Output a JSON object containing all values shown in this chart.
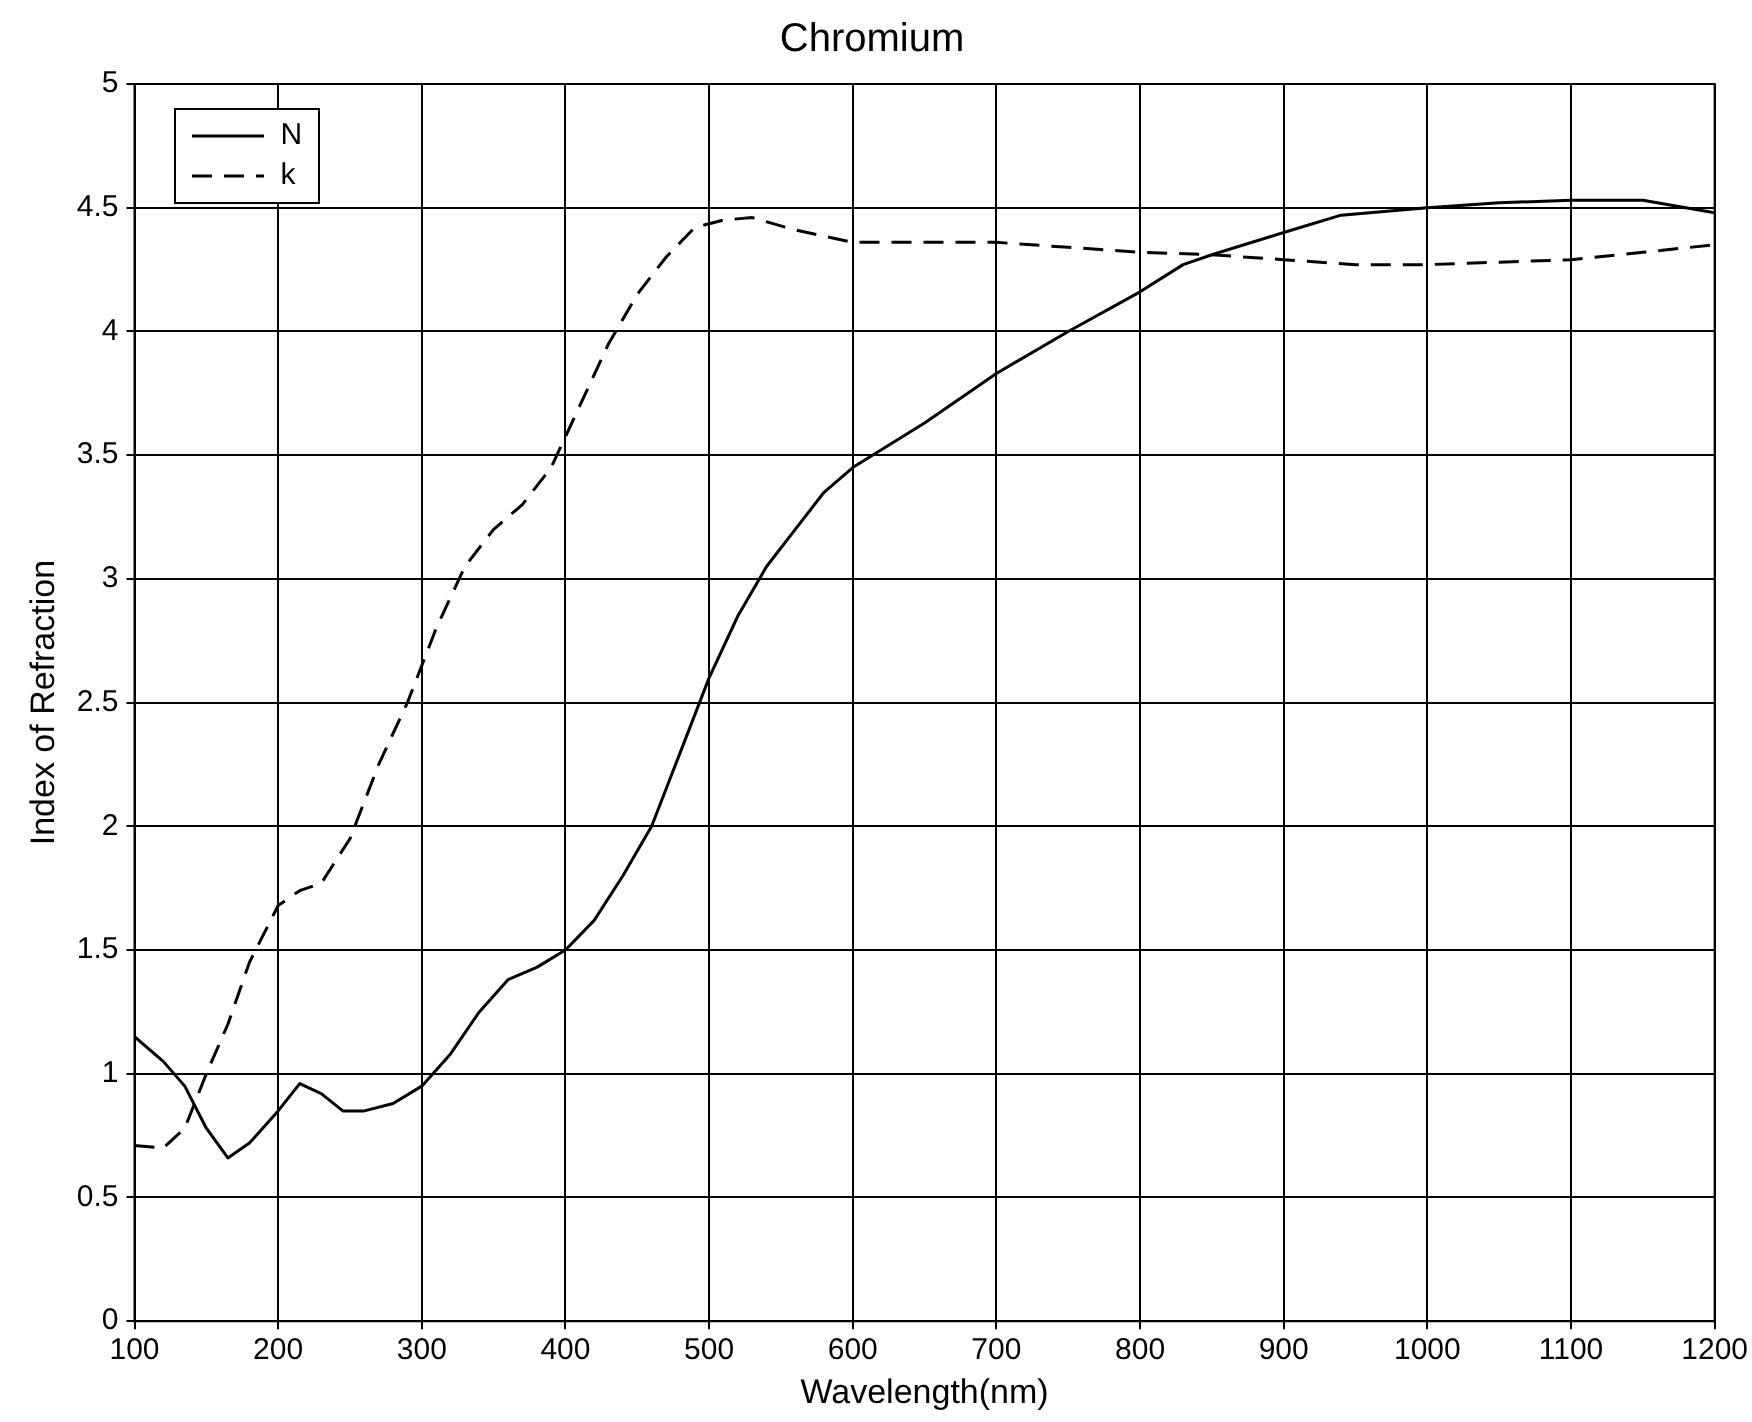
{
  "chart_data": {
    "type": "line",
    "title": "Chromium",
    "xlabel": "Wavelength(nm)",
    "ylabel": "Index of Refraction",
    "xlim": [
      100,
      1200
    ],
    "xticks": [
      100,
      200,
      300,
      400,
      500,
      600,
      700,
      800,
      900,
      1000,
      1100,
      1200
    ],
    "ylim": [
      0,
      5
    ],
    "yticks": [
      0,
      0.5,
      1,
      1.5,
      2,
      2.5,
      3,
      3.5,
      4,
      4.5,
      5
    ],
    "grid": true,
    "legend": "top left",
    "marker": "none",
    "series": [
      {
        "name": "N",
        "color": "#000000",
        "line_style": "solid",
        "x": [
          100,
          120,
          135,
          150,
          165,
          180,
          200,
          215,
          230,
          245,
          260,
          280,
          300,
          320,
          340,
          360,
          380,
          400,
          420,
          440,
          460,
          480,
          500,
          520,
          540,
          560,
          580,
          600,
          650,
          700,
          750,
          800,
          830,
          850,
          900,
          940,
          1000,
          1050,
          1100,
          1150,
          1200
        ],
        "values": [
          1.15,
          1.05,
          0.95,
          0.78,
          0.66,
          0.72,
          0.85,
          0.96,
          0.92,
          0.85,
          0.85,
          0.88,
          0.95,
          1.08,
          1.25,
          1.38,
          1.43,
          1.5,
          1.62,
          1.8,
          2.0,
          2.3,
          2.6,
          2.85,
          3.05,
          3.2,
          3.35,
          3.45,
          3.63,
          3.83,
          4.0,
          4.16,
          4.27,
          4.31,
          4.4,
          4.47,
          4.5,
          4.52,
          4.53,
          4.53,
          4.48
        ]
      },
      {
        "name": "k",
        "color": "#000000",
        "line_style": "dashed",
        "x": [
          100,
          120,
          135,
          150,
          165,
          180,
          200,
          215,
          230,
          250,
          270,
          290,
          310,
          330,
          350,
          370,
          390,
          410,
          430,
          450,
          470,
          490,
          510,
          530,
          560,
          600,
          650,
          700,
          750,
          800,
          850,
          900,
          950,
          1000,
          1050,
          1100,
          1150,
          1200
        ],
        "values": [
          0.71,
          0.7,
          0.78,
          1.0,
          1.2,
          1.45,
          1.68,
          1.74,
          1.77,
          1.95,
          2.25,
          2.5,
          2.8,
          3.05,
          3.2,
          3.3,
          3.45,
          3.7,
          3.95,
          4.15,
          4.3,
          4.42,
          4.45,
          4.46,
          4.41,
          4.36,
          4.36,
          4.36,
          4.34,
          4.32,
          4.31,
          4.29,
          4.27,
          4.27,
          4.28,
          4.29,
          4.32,
          4.35
        ]
      }
    ]
  }
}
